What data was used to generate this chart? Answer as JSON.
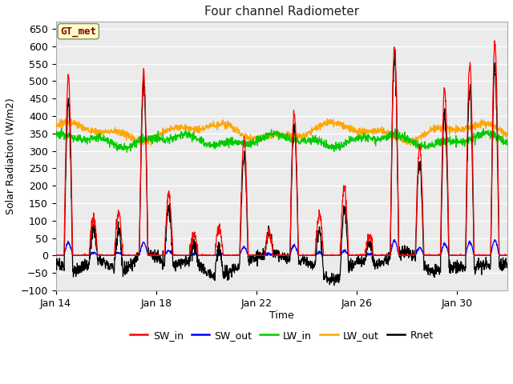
{
  "title": "Four channel Radiometer",
  "xlabel": "Time",
  "ylabel": "Solar Radiation (W/m2)",
  "ylim": [
    -100,
    670
  ],
  "yticks": [
    -100,
    -50,
    0,
    50,
    100,
    150,
    200,
    250,
    300,
    350,
    400,
    450,
    500,
    550,
    600,
    650
  ],
  "xtick_labels": [
    "Jan 14",
    "Jan 18",
    "Jan 22",
    "Jan 26",
    "Jan 30"
  ],
  "xtick_positions": [
    0,
    4,
    8,
    12,
    16
  ],
  "fig_bg_color": "#ffffff",
  "plot_bg_color": "#ebebeb",
  "annotation_label": "GT_met",
  "annotation_color": "#8b0000",
  "annotation_bg": "#ffffcc",
  "legend_items": [
    "SW_in",
    "SW_out",
    "LW_in",
    "LW_out",
    "Rnet"
  ],
  "legend_colors": [
    "#ff0000",
    "#0000ff",
    "#00cc00",
    "#ffa500",
    "#000000"
  ],
  "line_colors": {
    "SW_in": "#ff0000",
    "SW_out": "#0000ff",
    "LW_in": "#00cc00",
    "LW_out": "#ffa500",
    "Rnet": "#000000"
  },
  "n_days": 18,
  "n_per_day": 96,
  "sw_in_peaks": [
    510,
    110,
    120,
    525,
    175,
    60,
    75,
    330,
    70,
    410,
    120,
    195,
    60,
    600,
    310,
    475,
    550,
    605
  ],
  "sw_in_peaks2": [
    575
  ],
  "lw_in_base": 330,
  "lw_out_base": 355
}
